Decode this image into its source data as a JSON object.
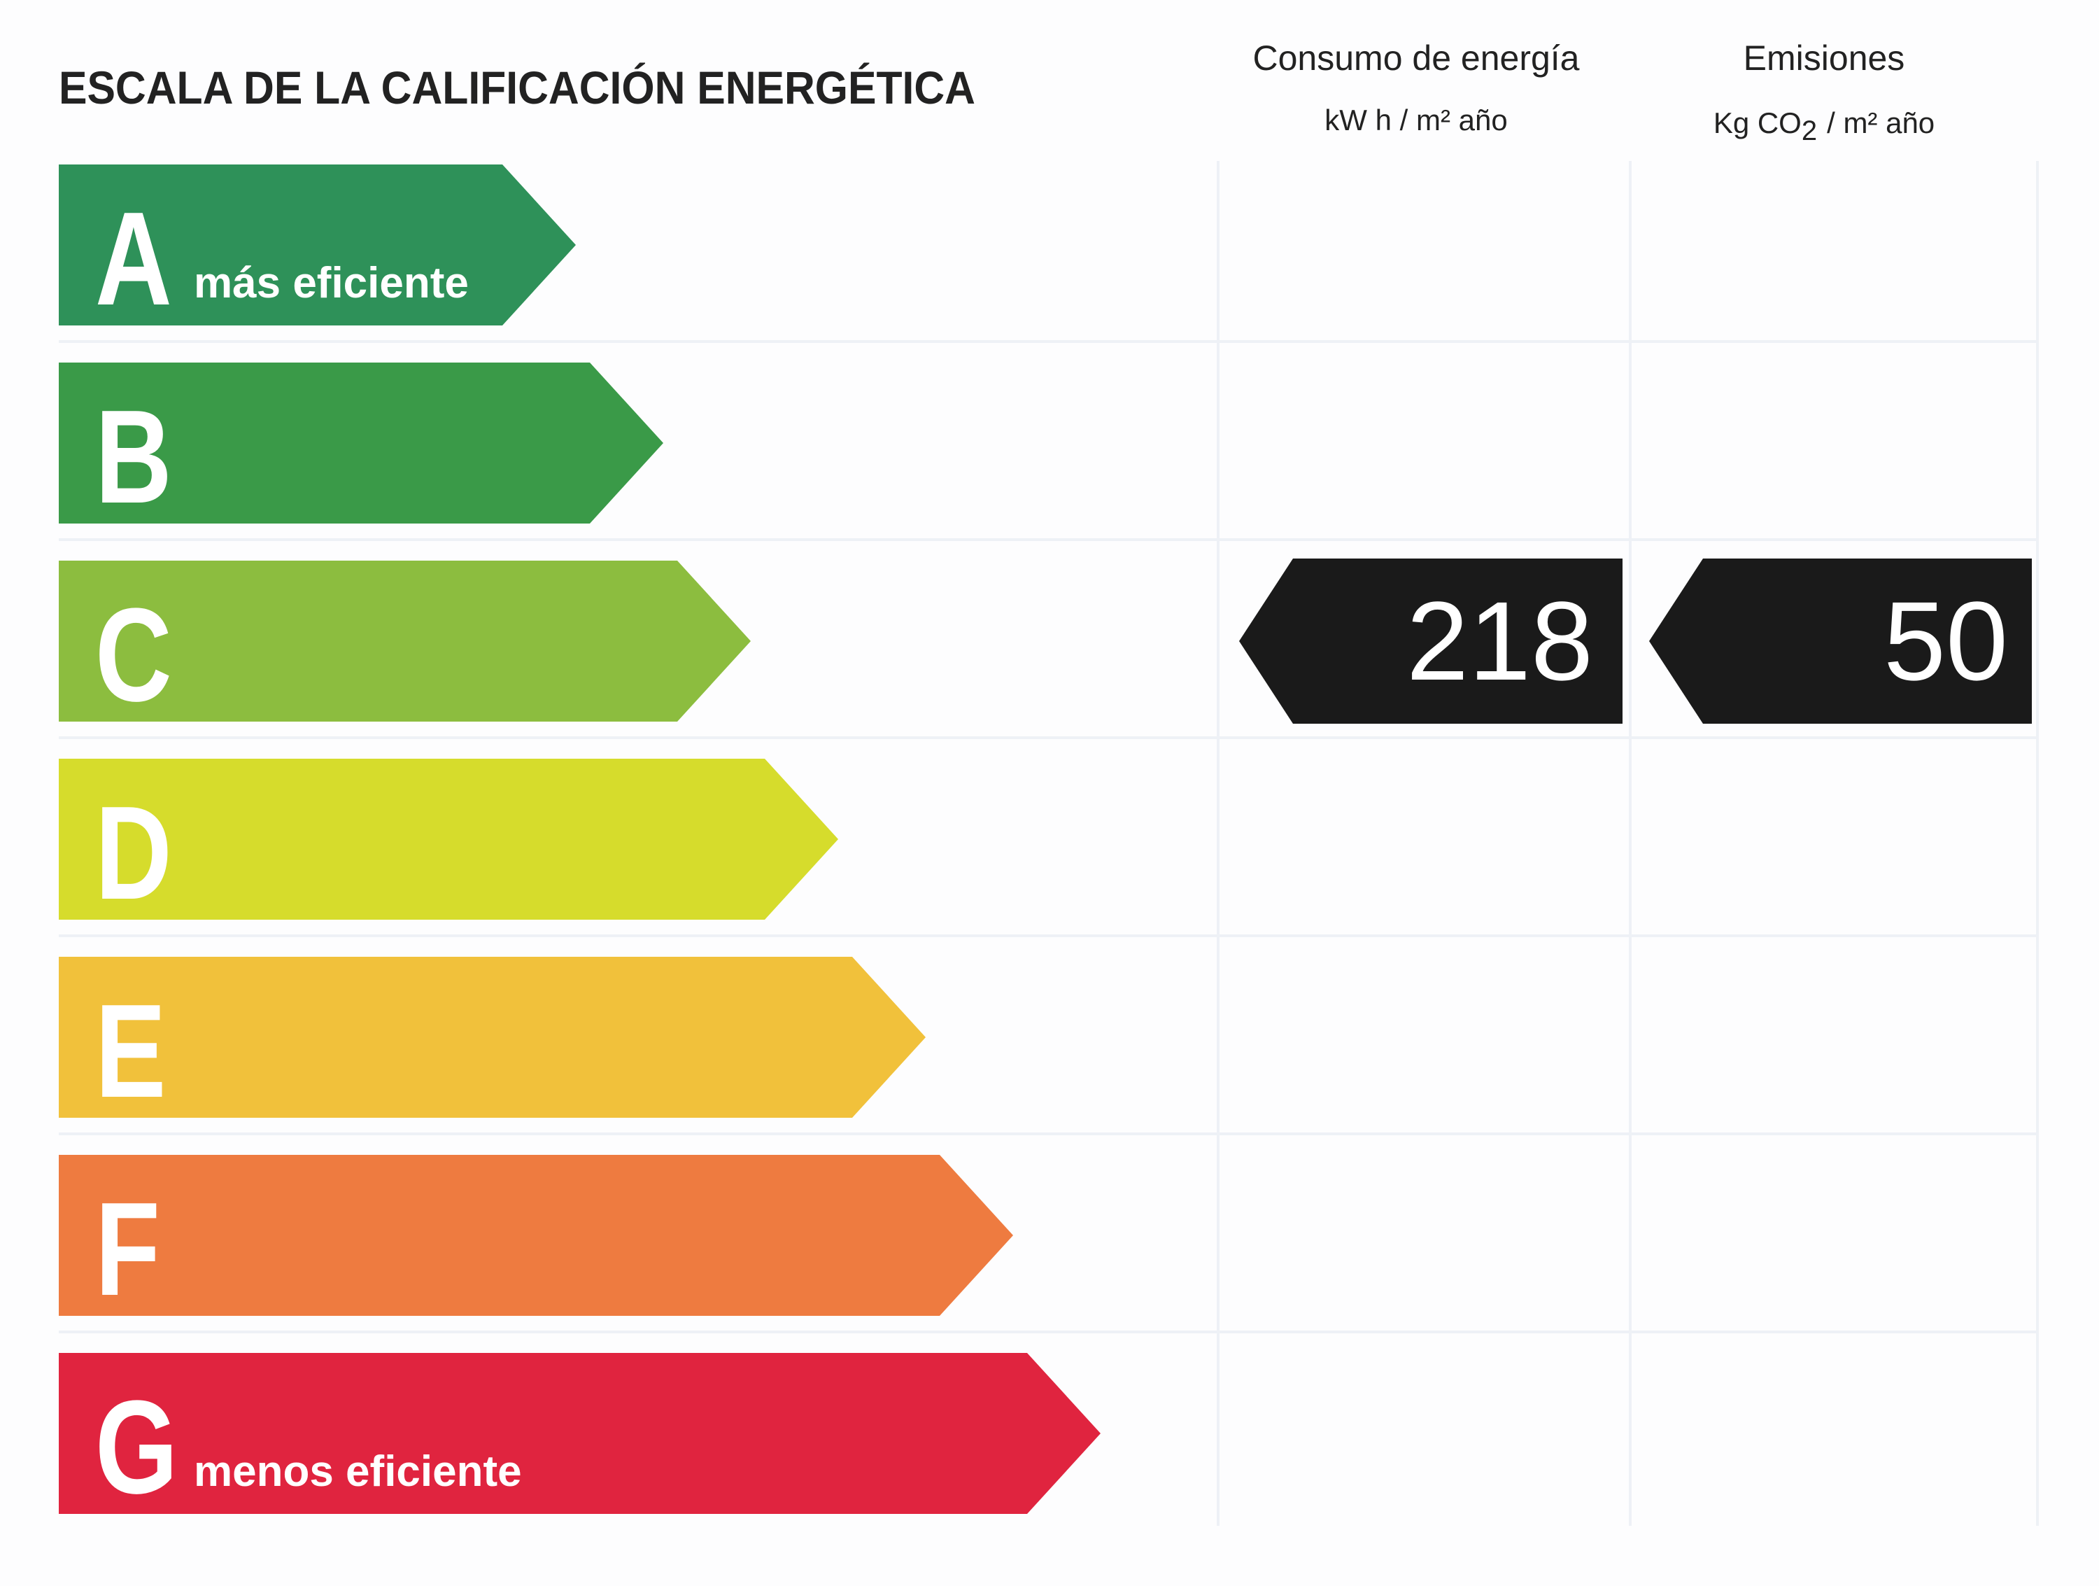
{
  "title": "ESCALA DE LA CALIFICACIÓN ENERGÉTICA",
  "columns": [
    {
      "header": "Consumo de energía",
      "unit": {
        "text": "kW h / m² año"
      }
    },
    {
      "header": "Emisiones",
      "unit": {
        "text": "Kg CO",
        "sub": "2",
        "post": "/ m²  año"
      }
    }
  ],
  "rows": [
    {
      "letter": "A",
      "label": "más eficiente",
      "color": "#2e9159"
    },
    {
      "letter": "B",
      "color": "#3a9a48"
    },
    {
      "letter": "C",
      "color": "#8cbd3f",
      "energy": 218,
      "emissions": 50
    },
    {
      "letter": "D",
      "color": "#d6dc2c"
    },
    {
      "letter": "E",
      "color": "#f1c13b"
    },
    {
      "letter": "F",
      "color": "#ee7b40"
    },
    {
      "letter": "G",
      "label": "menos eficiente",
      "color": "#e0243f"
    }
  ]
}
